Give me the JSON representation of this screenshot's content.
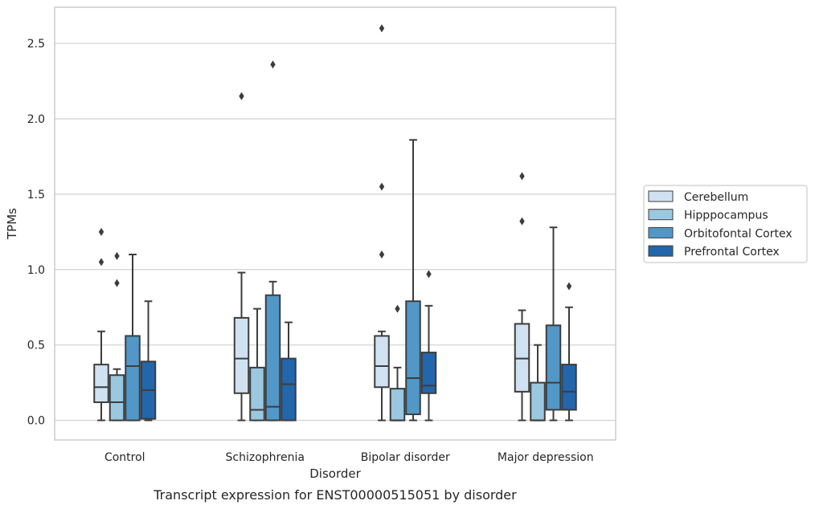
{
  "chart_data": {
    "type": "box",
    "caption": "Transcript expression for ENST00000515051 by disorder",
    "xlabel": "Disorder",
    "ylabel": "TPMs",
    "ylim": [
      -0.13,
      2.74
    ],
    "yticks": [
      0.0,
      0.5,
      1.0,
      1.5,
      2.0,
      2.5
    ],
    "ytick_labels": [
      "0.0",
      "0.5",
      "1.0",
      "1.5",
      "2.0",
      "2.5"
    ],
    "grid": "horizontal",
    "legend_position": "right",
    "categories": [
      "Control",
      "Schizophrenia",
      "Bipolar disorder",
      "Major depression"
    ],
    "series": [
      {
        "name": "Cerebellum",
        "color": "#d0e1f2",
        "boxes": [
          {
            "whislo": 0.0,
            "q1": 0.12,
            "med": 0.22,
            "q3": 0.37,
            "whishi": 0.59,
            "fliers": [
              1.05,
              1.25
            ]
          },
          {
            "whislo": 0.0,
            "q1": 0.18,
            "med": 0.41,
            "q3": 0.68,
            "whishi": 0.98,
            "fliers": [
              2.15
            ]
          },
          {
            "whislo": 0.0,
            "q1": 0.22,
            "med": 0.36,
            "q3": 0.56,
            "whishi": 0.59,
            "fliers": [
              1.1,
              1.55,
              2.6
            ]
          },
          {
            "whislo": 0.0,
            "q1": 0.19,
            "med": 0.41,
            "q3": 0.64,
            "whishi": 0.73,
            "fliers": [
              1.32,
              1.62
            ]
          }
        ]
      },
      {
        "name": "Hipppocampus",
        "color": "#9ac8e0",
        "boxes": [
          {
            "whislo": 0.0,
            "q1": 0.0,
            "med": 0.12,
            "q3": 0.3,
            "whishi": 0.34,
            "fliers": [
              0.91,
              1.09
            ]
          },
          {
            "whislo": 0.0,
            "q1": 0.0,
            "med": 0.07,
            "q3": 0.35,
            "whishi": 0.74,
            "fliers": []
          },
          {
            "whislo": 0.0,
            "q1": 0.0,
            "med": 0.0,
            "q3": 0.21,
            "whishi": 0.35,
            "fliers": [
              0.74
            ]
          },
          {
            "whislo": 0.0,
            "q1": 0.0,
            "med": 0.0,
            "q3": 0.25,
            "whishi": 0.5,
            "fliers": []
          }
        ]
      },
      {
        "name": "Orbitofontal Cortex",
        "color": "#5198c8",
        "boxes": [
          {
            "whislo": 0.0,
            "q1": 0.0,
            "med": 0.36,
            "q3": 0.56,
            "whishi": 1.1,
            "fliers": []
          },
          {
            "whislo": 0.0,
            "q1": 0.0,
            "med": 0.09,
            "q3": 0.83,
            "whishi": 0.92,
            "fliers": [
              2.36
            ]
          },
          {
            "whislo": 0.0,
            "q1": 0.04,
            "med": 0.28,
            "q3": 0.79,
            "whishi": 1.86,
            "fliers": []
          },
          {
            "whislo": 0.0,
            "q1": 0.07,
            "med": 0.25,
            "q3": 0.63,
            "whishi": 1.28,
            "fliers": []
          }
        ]
      },
      {
        "name": "Prefrontal Cortex",
        "color": "#2266ab",
        "boxes": [
          {
            "whislo": 0.0,
            "q1": 0.01,
            "med": 0.2,
            "q3": 0.39,
            "whishi": 0.79,
            "fliers": []
          },
          {
            "whislo": 0.0,
            "q1": 0.0,
            "med": 0.24,
            "q3": 0.41,
            "whishi": 0.65,
            "fliers": []
          },
          {
            "whislo": 0.0,
            "q1": 0.18,
            "med": 0.23,
            "q3": 0.45,
            "whishi": 0.76,
            "fliers": [
              0.97
            ]
          },
          {
            "whislo": 0.0,
            "q1": 0.07,
            "med": 0.19,
            "q3": 0.37,
            "whishi": 0.75,
            "fliers": [
              0.89
            ]
          }
        ]
      }
    ]
  }
}
